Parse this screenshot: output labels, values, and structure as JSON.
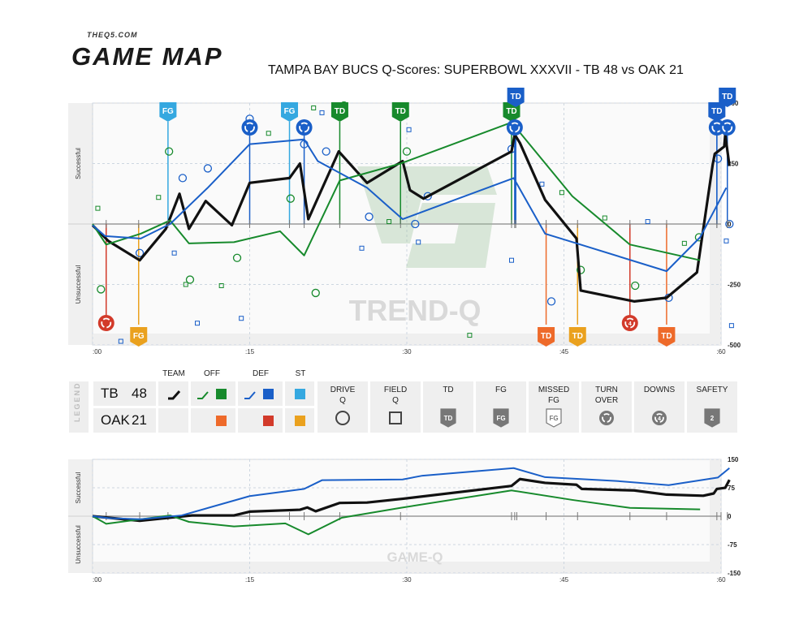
{
  "header": {
    "site": "THEQ5.COM",
    "brand": "GAME MAP",
    "title": "TAMPA BAY BUCS Q-Scores: SUPERBOWL XXXVII - TB 48 vs OAK 21"
  },
  "colors": {
    "team": "#111111",
    "offense": "#178a2c",
    "defense": "#1a5fc8",
    "special_teams": "#35a8e0",
    "opp_offense": "#ee6a2a",
    "opp_defense": "#d23a2a",
    "opp_special_teams": "#eaa11e",
    "panel": "#f3f3f3",
    "axis": "#999999"
  },
  "legend": {
    "side_label": "LEGEND",
    "teams": [
      {
        "name": "TB",
        "score": "48"
      },
      {
        "name": "OAK",
        "score": "21"
      }
    ],
    "columns": [
      "TEAM",
      "OFF",
      "DEF",
      "ST"
    ],
    "symbols": [
      {
        "label": "DRIVE\nQ",
        "icon": "circle-outline"
      },
      {
        "label": "FIELD\nQ",
        "icon": "square-outline"
      },
      {
        "label": "TD",
        "icon": "td-badge"
      },
      {
        "label": "FG",
        "icon": "fg-badge"
      },
      {
        "label": "MISSED\nFG",
        "icon": "missed-fg-badge"
      },
      {
        "label": "TURN\nOVER",
        "icon": "turnover-circle"
      },
      {
        "label": "DOWNS",
        "icon": "downs-circle"
      },
      {
        "label": "SAFETY",
        "icon": "safety-badge"
      }
    ],
    "safety_value": "2",
    "downs_value": "4"
  },
  "chart_data": [
    {
      "type": "line",
      "id": "trend",
      "watermark": "TREND-Q",
      "xlim": [
        0,
        60
      ],
      "ylim": [
        -500,
        500
      ],
      "x_ticks": [
        ":00",
        ":15",
        ":30",
        ":45",
        ":60"
      ],
      "y_ticks": [
        500,
        250,
        0,
        -250,
        -500
      ],
      "ylabel_top": "Successful",
      "ylabel_bottom": "Unsuccessful",
      "series": [
        {
          "role": "team",
          "points": [
            [
              0,
              -5
            ],
            [
              1.5,
              -70
            ],
            [
              4.5,
              -150
            ],
            [
              7,
              -20
            ],
            [
              8.3,
              125
            ],
            [
              9.2,
              -20
            ],
            [
              10.8,
              95
            ],
            [
              13.3,
              -5
            ],
            [
              15,
              170
            ],
            [
              18.8,
              190
            ],
            [
              19.8,
              250
            ],
            [
              20.6,
              20
            ],
            [
              23.5,
              300
            ],
            [
              26.2,
              170
            ],
            [
              29.6,
              260
            ],
            [
              30.3,
              140
            ],
            [
              31.6,
              105
            ],
            [
              40,
              300
            ],
            [
              40.3,
              370
            ],
            [
              40.8,
              335
            ],
            [
              43.2,
              100
            ],
            [
              46.2,
              -60
            ],
            [
              46.6,
              -275
            ],
            [
              51.7,
              -320
            ],
            [
              54.8,
              -305
            ],
            [
              57.7,
              -200
            ],
            [
              59.2,
              245
            ],
            [
              59.4,
              290
            ],
            [
              60.3,
              320
            ],
            [
              60.4,
              370
            ],
            [
              60.8,
              240
            ]
          ]
        },
        {
          "role": "offense",
          "points": [
            [
              0,
              0
            ],
            [
              1.3,
              -85
            ],
            [
              4.6,
              -40
            ],
            [
              7.4,
              15
            ],
            [
              9.2,
              -80
            ],
            [
              13.5,
              -75
            ],
            [
              17.9,
              -30
            ],
            [
              20.2,
              -130
            ],
            [
              23.6,
              180
            ],
            [
              29.4,
              250
            ],
            [
              40,
              420
            ],
            [
              45.8,
              115
            ],
            [
              51.3,
              -85
            ],
            [
              58,
              -150
            ]
          ]
        },
        {
          "role": "defense",
          "points": [
            [
              0,
              -5
            ],
            [
              1.2,
              -50
            ],
            [
              4.6,
              -60
            ],
            [
              7.4,
              0
            ],
            [
              11,
              150
            ],
            [
              15,
              330
            ],
            [
              20.2,
              350
            ],
            [
              21.5,
              260
            ],
            [
              26.2,
              150
            ],
            [
              29.6,
              20
            ],
            [
              40.2,
              190
            ],
            [
              43.2,
              -40
            ],
            [
              46.2,
              -80
            ],
            [
              54.8,
              -195
            ],
            [
              58,
              -55
            ],
            [
              60.5,
              150
            ]
          ]
        }
      ],
      "drive_circles": [
        {
          "x": 0.8,
          "y": -270,
          "side": "off"
        },
        {
          "x": 4.5,
          "y": -120,
          "side": "def"
        },
        {
          "x": 7.3,
          "y": 300,
          "side": "off"
        },
        {
          "x": 8.6,
          "y": 190,
          "side": "def"
        },
        {
          "x": 9.3,
          "y": -230,
          "side": "off"
        },
        {
          "x": 11,
          "y": 230,
          "side": "def"
        },
        {
          "x": 13.8,
          "y": -140,
          "side": "off"
        },
        {
          "x": 15,
          "y": 435,
          "side": "def"
        },
        {
          "x": 18.9,
          "y": 105,
          "side": "off"
        },
        {
          "x": 20.2,
          "y": 330,
          "side": "def"
        },
        {
          "x": 21.3,
          "y": -285,
          "side": "off"
        },
        {
          "x": 22.3,
          "y": 300,
          "side": "def"
        },
        {
          "x": 24,
          "y": 490,
          "side": "off"
        },
        {
          "x": 26.4,
          "y": 30,
          "side": "def"
        },
        {
          "x": 30,
          "y": 300,
          "side": "off"
        },
        {
          "x": 30.8,
          "y": 0,
          "side": "def"
        },
        {
          "x": 32,
          "y": 115,
          "side": "def"
        },
        {
          "x": 40,
          "y": 310,
          "side": "def"
        },
        {
          "x": 43.8,
          "y": -320,
          "side": "def"
        },
        {
          "x": 46.6,
          "y": -190,
          "side": "off"
        },
        {
          "x": 51.8,
          "y": -255,
          "side": "off"
        },
        {
          "x": 55,
          "y": -305,
          "side": "def"
        },
        {
          "x": 57.9,
          "y": -55,
          "side": "off"
        },
        {
          "x": 59.7,
          "y": 270,
          "side": "def"
        },
        {
          "x": 60.8,
          "y": 0,
          "side": "def"
        }
      ],
      "field_squares": [
        {
          "x": 0.5,
          "y": 65,
          "side": "off"
        },
        {
          "x": 2.7,
          "y": -485,
          "side": "def"
        },
        {
          "x": 6.3,
          "y": 110,
          "side": "off"
        },
        {
          "x": 7.8,
          "y": -120,
          "side": "def"
        },
        {
          "x": 8.9,
          "y": -250,
          "side": "off"
        },
        {
          "x": 10,
          "y": -410,
          "side": "def"
        },
        {
          "x": 12.3,
          "y": -255,
          "side": "off"
        },
        {
          "x": 14.2,
          "y": -390,
          "side": "def"
        },
        {
          "x": 16.8,
          "y": 375,
          "side": "off"
        },
        {
          "x": 21.1,
          "y": 480,
          "side": "off"
        },
        {
          "x": 21.9,
          "y": 460,
          "side": "def"
        },
        {
          "x": 25.7,
          "y": -100,
          "side": "def"
        },
        {
          "x": 28.3,
          "y": 10,
          "side": "off"
        },
        {
          "x": 30.2,
          "y": 390,
          "side": "def"
        },
        {
          "x": 31.1,
          "y": -75,
          "side": "def"
        },
        {
          "x": 36,
          "y": -460,
          "side": "off"
        },
        {
          "x": 40,
          "y": -150,
          "side": "def"
        },
        {
          "x": 42.9,
          "y": 165,
          "side": "def"
        },
        {
          "x": 44.8,
          "y": 130,
          "side": "off"
        },
        {
          "x": 48.9,
          "y": 25,
          "side": "off"
        },
        {
          "x": 53,
          "y": 10,
          "side": "def"
        },
        {
          "x": 56.5,
          "y": -80,
          "side": "off"
        },
        {
          "x": 60.5,
          "y": -70,
          "side": "def"
        },
        {
          "x": 61,
          "y": -420,
          "side": "def"
        }
      ],
      "events": [
        {
          "x": 7.2,
          "type": "FG",
          "team": "top",
          "color": "#35a8e0"
        },
        {
          "x": 15,
          "type": "TO",
          "team": "top",
          "color": "#1a5fc8"
        },
        {
          "x": 18.8,
          "type": "FG",
          "team": "top",
          "color": "#35a8e0"
        },
        {
          "x": 20.2,
          "type": "TO",
          "team": "top",
          "color": "#1a5fc8"
        },
        {
          "x": 23.6,
          "type": "TD",
          "team": "top",
          "color": "#178a2c"
        },
        {
          "x": 29.4,
          "type": "TD",
          "team": "top",
          "color": "#178a2c"
        },
        {
          "x": 40,
          "type": "TD",
          "team": "top",
          "color": "#178a2c"
        },
        {
          "x": 40.4,
          "type": "TD",
          "team": "top",
          "color": "#1a5fc8",
          "raised": true
        },
        {
          "x": 40.3,
          "type": "TO",
          "team": "top",
          "color": "#1a5fc8"
        },
        {
          "x": 59.6,
          "type": "TD",
          "team": "top",
          "color": "#1a5fc8"
        },
        {
          "x": 59.6,
          "type": "TO",
          "team": "top",
          "color": "#1a5fc8"
        },
        {
          "x": 60.6,
          "type": "TD",
          "team": "top",
          "color": "#1a5fc8",
          "raised": true
        },
        {
          "x": 60.6,
          "type": "TO",
          "team": "top",
          "color": "#1a5fc8"
        },
        {
          "x": 1.3,
          "type": "TO",
          "team": "bottom",
          "color": "#d23a2a"
        },
        {
          "x": 4.4,
          "type": "FG",
          "team": "bottom",
          "color": "#eaa11e"
        },
        {
          "x": 43.3,
          "type": "TD",
          "team": "bottom",
          "color": "#ee6a2a"
        },
        {
          "x": 46.3,
          "type": "TD",
          "team": "bottom",
          "color": "#eaa11e"
        },
        {
          "x": 51.3,
          "type": "DN",
          "team": "bottom",
          "color": "#d23a2a"
        },
        {
          "x": 54.8,
          "type": "TD",
          "team": "bottom",
          "color": "#ee6a2a"
        }
      ]
    },
    {
      "type": "line",
      "id": "game",
      "watermark": "GAME-Q",
      "xlim": [
        0,
        60
      ],
      "ylim": [
        -150,
        150
      ],
      "x_ticks": [
        ":00",
        ":15",
        ":30",
        ":45",
        ":60"
      ],
      "y_ticks": [
        150,
        75,
        0,
        -75,
        -150
      ],
      "ylabel_top": "Successful",
      "ylabel_bottom": "Unsuccessful",
      "series": [
        {
          "role": "team",
          "points": [
            [
              0,
              0
            ],
            [
              4.5,
              -12
            ],
            [
              9.5,
              2
            ],
            [
              13.5,
              2
            ],
            [
              15,
              12
            ],
            [
              19.8,
              17
            ],
            [
              20.5,
              23
            ],
            [
              21.3,
              13
            ],
            [
              23.6,
              35
            ],
            [
              26.2,
              36
            ],
            [
              29.6,
              46
            ],
            [
              40,
              80
            ],
            [
              40.8,
              98
            ],
            [
              43.2,
              88
            ],
            [
              46.2,
              83
            ],
            [
              46.7,
              72
            ],
            [
              51.7,
              68
            ],
            [
              54.8,
              57
            ],
            [
              58.3,
              54
            ],
            [
              59.3,
              60
            ],
            [
              59.6,
              72
            ],
            [
              60.4,
              75
            ],
            [
              60.8,
              96
            ]
          ]
        },
        {
          "role": "offense",
          "points": [
            [
              0,
              0
            ],
            [
              1.3,
              -20
            ],
            [
              7.4,
              2
            ],
            [
              9.2,
              -15
            ],
            [
              13.5,
              -27
            ],
            [
              18.4,
              -19
            ],
            [
              20.6,
              -48
            ],
            [
              23.8,
              -4
            ],
            [
              29.4,
              22
            ],
            [
              40,
              68
            ],
            [
              45.8,
              43
            ],
            [
              51.3,
              22
            ],
            [
              58,
              18
            ]
          ]
        },
        {
          "role": "defense",
          "points": [
            [
              0,
              0
            ],
            [
              1.5,
              -5
            ],
            [
              4.6,
              -8
            ],
            [
              8.5,
              2
            ],
            [
              15,
              53
            ],
            [
              20.2,
              72
            ],
            [
              21.9,
              95
            ],
            [
              29.6,
              97
            ],
            [
              31.5,
              107
            ],
            [
              40.2,
              127
            ],
            [
              43.2,
              103
            ],
            [
              50,
              93
            ],
            [
              55,
              82
            ],
            [
              59.7,
              102
            ],
            [
              60.8,
              127
            ]
          ]
        }
      ],
      "event_ticks": [
        1.3,
        4.5,
        7.2,
        15,
        18.8,
        20.2,
        23.6,
        29.4,
        40,
        40.3,
        40.5,
        43.3,
        46.3,
        51.3,
        54.8,
        59.6,
        60,
        60.6
      ]
    }
  ]
}
